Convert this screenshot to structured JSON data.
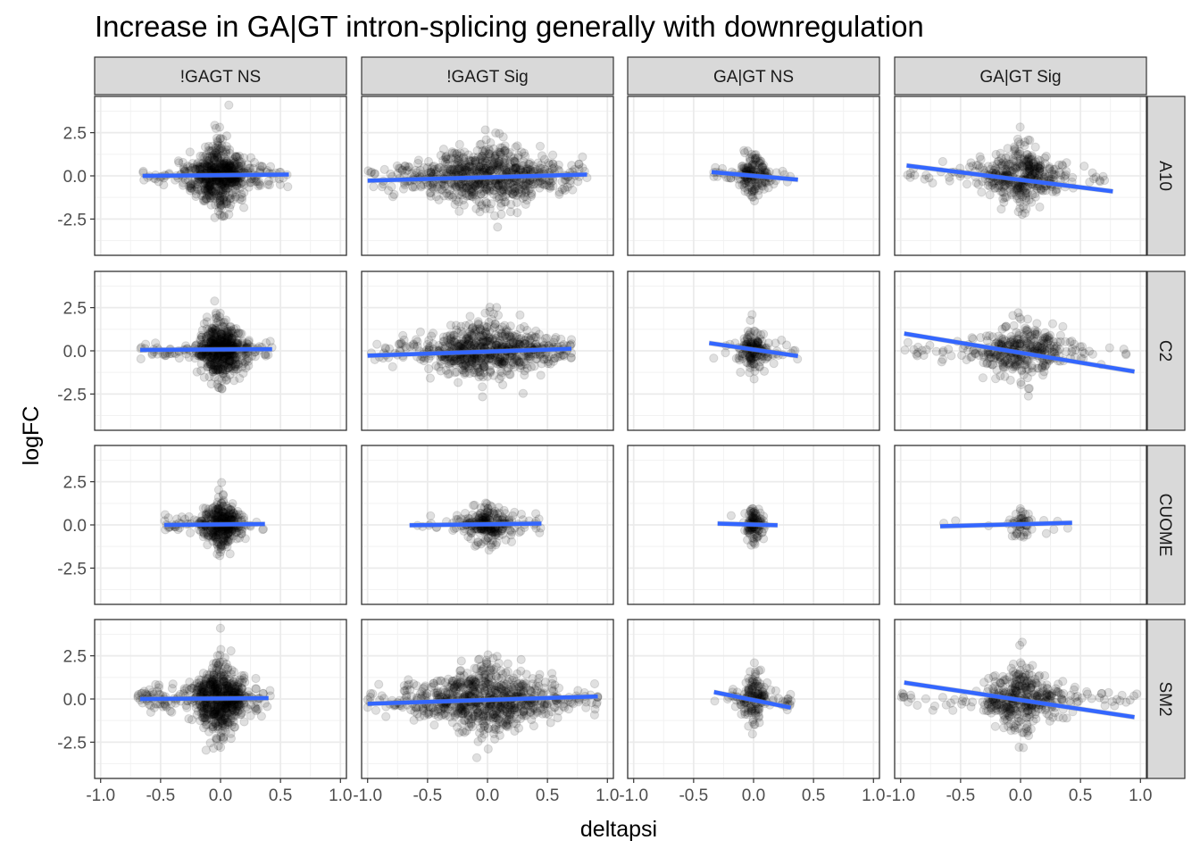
{
  "chart_data": {
    "type": "scatter",
    "title": "Increase in GA|GT intron-splicing generally with downregulation",
    "xlabel": "deltapsi",
    "ylabel": "logFC",
    "xlim": [
      -1.05,
      1.05
    ],
    "ylim": [
      -4.6,
      4.6
    ],
    "x_ticks": [
      -1.0,
      -0.5,
      0.0,
      0.5,
      1.0
    ],
    "x_tick_labels": [
      "-1.0",
      "-0.5",
      "0.0",
      "0.5",
      "1.0"
    ],
    "y_ticks": [
      -2.5,
      0.0,
      2.5
    ],
    "y_tick_labels": [
      "-2.5",
      "0.0",
      "2.5"
    ],
    "col_facets": [
      "!GAGT NS",
      "!GAGT Sig",
      "GA|GT NS",
      "GA|GT Sig"
    ],
    "row_facets": [
      "A10",
      "C2",
      "CUOME",
      "SM2"
    ],
    "point_color": "#000000",
    "point_alpha": 0.12,
    "fit_line_color": "#3366FF",
    "ci_band_color": "#999999",
    "panels": [
      {
        "row": "A10",
        "col": "!GAGT NS",
        "xmin": -0.65,
        "xmax": 0.57,
        "xspread": 0.12,
        "yspread": 1.1,
        "n": 650,
        "fit": [
          [
            -0.65,
            0.0
          ],
          [
            0.57,
            0.08
          ]
        ]
      },
      {
        "row": "A10",
        "col": "!GAGT Sig",
        "xmin": -1.0,
        "xmax": 0.83,
        "xspread": 0.3,
        "yspread": 1.0,
        "n": 750,
        "fit": [
          [
            -1.0,
            -0.28
          ],
          [
            0.83,
            0.08
          ]
        ]
      },
      {
        "row": "A10",
        "col": "GA|GT NS",
        "xmin": -0.35,
        "xmax": 0.37,
        "xspread": 0.06,
        "yspread": 0.65,
        "n": 180,
        "fit": [
          [
            -0.35,
            0.22
          ],
          [
            0.37,
            -0.22
          ]
        ]
      },
      {
        "row": "A10",
        "col": "GA|GT Sig",
        "xmin": -0.95,
        "xmax": 0.77,
        "xspread": 0.18,
        "yspread": 0.85,
        "n": 420,
        "fit": [
          [
            -0.95,
            0.6
          ],
          [
            0.77,
            -0.9
          ]
        ]
      },
      {
        "row": "C2",
        "col": "!GAGT NS",
        "xmin": -0.67,
        "xmax": 0.43,
        "xspread": 0.1,
        "yspread": 0.95,
        "n": 600,
        "fit": [
          [
            -0.67,
            0.05
          ],
          [
            0.43,
            0.1
          ]
        ]
      },
      {
        "row": "C2",
        "col": "!GAGT Sig",
        "xmin": -1.0,
        "xmax": 0.7,
        "xspread": 0.28,
        "yspread": 0.95,
        "n": 700,
        "fit": [
          [
            -1.0,
            -0.28
          ],
          [
            0.7,
            0.12
          ]
        ]
      },
      {
        "row": "C2",
        "col": "GA|GT NS",
        "xmin": -0.37,
        "xmax": 0.37,
        "xspread": 0.06,
        "yspread": 0.6,
        "n": 170,
        "fit": [
          [
            -0.37,
            0.45
          ],
          [
            0.37,
            -0.3
          ]
        ]
      },
      {
        "row": "C2",
        "col": "GA|GT Sig",
        "xmin": -0.97,
        "xmax": 0.95,
        "xspread": 0.18,
        "yspread": 0.9,
        "n": 380,
        "fit": [
          [
            -0.97,
            1.0
          ],
          [
            0.95,
            -1.2
          ]
        ]
      },
      {
        "row": "CUOME",
        "col": "!GAGT NS",
        "xmin": -0.47,
        "xmax": 0.37,
        "xspread": 0.08,
        "yspread": 0.65,
        "n": 400,
        "fit": [
          [
            -0.47,
            0.0
          ],
          [
            0.37,
            0.05
          ]
        ]
      },
      {
        "row": "CUOME",
        "col": "!GAGT Sig",
        "xmin": -0.65,
        "xmax": 0.45,
        "xspread": 0.1,
        "yspread": 0.5,
        "n": 260,
        "fit": [
          [
            -0.65,
            -0.02
          ],
          [
            0.45,
            0.08
          ]
        ]
      },
      {
        "row": "CUOME",
        "col": "GA|GT NS",
        "xmin": -0.3,
        "xmax": 0.25,
        "xspread": 0.04,
        "yspread": 0.35,
        "n": 110,
        "fit": [
          [
            -0.3,
            0.08
          ],
          [
            0.2,
            -0.02
          ]
        ]
      },
      {
        "row": "CUOME",
        "col": "GA|GT Sig",
        "xmin": -0.67,
        "xmax": 0.43,
        "xspread": 0.05,
        "yspread": 0.35,
        "n": 60,
        "fit": [
          [
            -0.67,
            -0.08
          ],
          [
            0.43,
            0.12
          ]
        ]
      },
      {
        "row": "SM2",
        "col": "!GAGT NS",
        "xmin": -0.7,
        "xmax": 0.42,
        "xspread": 0.12,
        "yspread": 1.2,
        "n": 700,
        "fit": [
          [
            -0.67,
            0.0
          ],
          [
            0.4,
            0.05
          ]
        ]
      },
      {
        "row": "SM2",
        "col": "!GAGT Sig",
        "xmin": -1.0,
        "xmax": 0.92,
        "xspread": 0.3,
        "yspread": 1.05,
        "n": 800,
        "fit": [
          [
            -1.0,
            -0.28
          ],
          [
            0.92,
            0.15
          ]
        ]
      },
      {
        "row": "SM2",
        "col": "GA|GT NS",
        "xmin": -0.33,
        "xmax": 0.33,
        "xspread": 0.06,
        "yspread": 0.75,
        "n": 170,
        "fit": [
          [
            -0.33,
            0.4
          ],
          [
            0.31,
            -0.5
          ]
        ]
      },
      {
        "row": "SM2",
        "col": "GA|GT Sig",
        "xmin": -1.0,
        "xmax": 0.97,
        "xspread": 0.18,
        "yspread": 0.95,
        "n": 430,
        "fit": [
          [
            -0.97,
            0.95
          ],
          [
            0.95,
            -1.05
          ]
        ]
      }
    ]
  }
}
